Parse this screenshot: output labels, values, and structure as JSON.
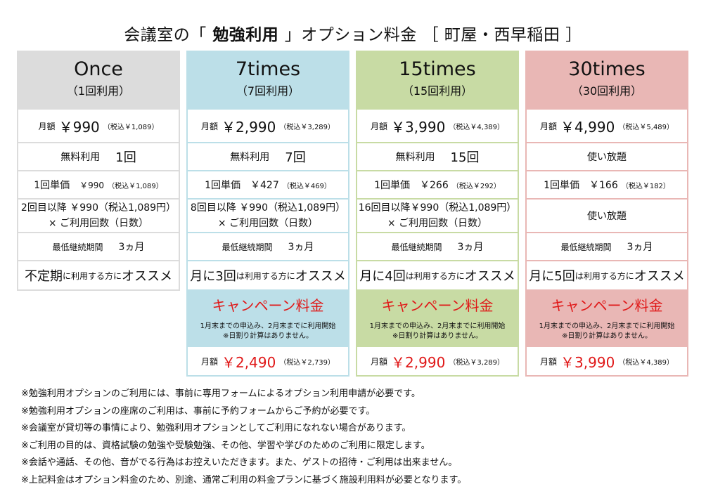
{
  "title": {
    "pre": "会議室の「",
    "bold": " 勉強利用 ",
    "post": "」オプション料金 ［ 町屋・西早稲田 ］"
  },
  "plans": [
    {
      "name": "Once",
      "sub": "（1回利用）",
      "monthly_label": "月額",
      "monthly_price": "￥990",
      "monthly_tax": "（税込￥1,089）",
      "free_label": "無料利用",
      "free_value": "1回",
      "unit_label": "1回単価",
      "unit_price": "￥990",
      "unit_tax": "（税込￥1,089）",
      "extra_line1": "2回目以降 ￥990（税込1,089円）",
      "extra_line2": "× ご利用回数（日数）",
      "min_label": "最低継続期間",
      "min_value": "3ヵ月",
      "rec_a": "不定期",
      "rec_b": "に利用する方に",
      "rec_c": "オススメ"
    },
    {
      "name": "7times",
      "sub": "（7回利用）",
      "monthly_label": "月額",
      "monthly_price": "￥2,990",
      "monthly_tax": "（税込￥3,289）",
      "free_label": "無料利用",
      "free_value": "7回",
      "unit_label": "1回単価",
      "unit_price": "￥427",
      "unit_tax": "（税込￥469）",
      "extra_line1": "8回目以降 ￥990（税込1,089円）",
      "extra_line2": "× ご利用回数（日数）",
      "min_label": "最低継続期間",
      "min_value": "3ヵ月",
      "rec_a": "月に3回",
      "rec_b": "は利用する方に",
      "rec_c": "オススメ",
      "campaign_title": "キャンペーン料金",
      "campaign_note1": "1月末までの申込み、2月末までに利用開始",
      "campaign_note2": "※日割り計算はありません。",
      "campaign_label": "月額",
      "campaign_price": "￥2,490",
      "campaign_tax": "（税込￥2,739）"
    },
    {
      "name": "15times",
      "sub": "（15回利用）",
      "monthly_label": "月額",
      "monthly_price": "￥3,990",
      "monthly_tax": "（税込￥4,389）",
      "free_label": "無料利用",
      "free_value": "15回",
      "unit_label": "1回単価",
      "unit_price": "￥266",
      "unit_tax": "（税込￥292）",
      "extra_line1": "16回目以降￥990（税込1,089円）",
      "extra_line2": "× ご利用回数（日数）",
      "min_label": "最低継続期間",
      "min_value": "3ヵ月",
      "rec_a": "月に4回",
      "rec_b": "は利用する方に",
      "rec_c": "オススメ",
      "campaign_title": "キャンペーン料金",
      "campaign_note1": "1月末までの申込み、2月末までに利用開始",
      "campaign_note2": "※日割り計算はありません。",
      "campaign_label": "月額",
      "campaign_price": "￥2,990",
      "campaign_tax": "（税込￥3,289）"
    },
    {
      "name": "30times",
      "sub": "（30回利用）",
      "monthly_label": "月額",
      "monthly_price": "￥4,990",
      "monthly_tax": "（税込￥5,489）",
      "free_value": "使い放題",
      "unit_label": "1回単価",
      "unit_price": "￥166",
      "unit_tax": "（税込￥182）",
      "extra_value": "使い放題",
      "min_label": "最低継続期間",
      "min_value": "3ヵ月",
      "rec_a": "月に5回",
      "rec_b": "は利用する方に",
      "rec_c": "オススメ",
      "campaign_title": "キャンペーン料金",
      "campaign_note1": "1月末までの申込み、2月末までに利用開始",
      "campaign_note2": "※日割り計算はありません。",
      "campaign_label": "月額",
      "campaign_price": "￥3,990",
      "campaign_tax": "（税込￥4,389）"
    }
  ],
  "notes": [
    "※勉強利用オプションのご利用には、事前に専用フォームによるオプション利用申請が必要です。",
    "※勉強利用オプションの座席のご利用は、事前に予約フォームからご予約が必要です。",
    "※会議室が貸切等の事情により、勉強利用オプションとしてご利用になれない場合があります。",
    "※ご利用の目的は、資格試験の勉強や受験勉強、その他、学習や学びのためのご利用に限定します。",
    "※会話や通話、その他、音がでる行為はお控えいただきます。また、ゲストの招待・ご利用は出来ません。",
    "※上記料金はオプション料金のため、別途、通常ご利用の料金プランに基づく施設利用料が必要となります。"
  ]
}
